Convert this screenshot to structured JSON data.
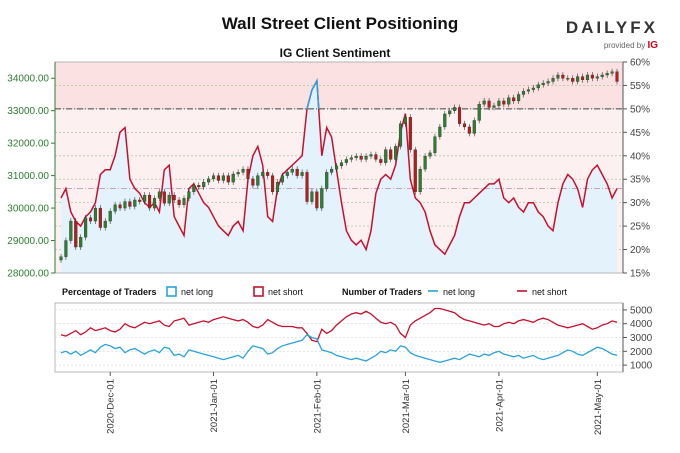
{
  "header": {
    "title": "Wall Street Client Positioning",
    "subtitle": "IG Client Sentiment",
    "brand_name": "DAILYFX",
    "brand_tag": "provided by",
    "brand_tag_logo": "IG"
  },
  "colors": {
    "price_up": "#2e7d32",
    "price_down": "#b71c1c",
    "net_long": "#29a3e0",
    "net_short": "#c8102e",
    "upper_fill": "#fbe1e1",
    "lower_fill": "#e3f1fc"
  },
  "chart_data": [
    {
      "type": "line",
      "title": "IG Client Sentiment",
      "left_axis": {
        "ticks": [
          "28000.00",
          "29000.00",
          "30000.00",
          "31000.00",
          "32000.00",
          "33000.00",
          "34000.00"
        ],
        "range": [
          28000,
          34500
        ]
      },
      "right_axis": {
        "ticks": [
          "15%",
          "20%",
          "25%",
          "30%",
          "35%",
          "40%",
          "45%",
          "50%",
          "55%",
          "60%"
        ],
        "range": [
          15,
          60
        ]
      },
      "x_labels": [
        "2020-Dec-01",
        "2021-Jan-01",
        "2021-Feb-01",
        "2021-Mar-01",
        "2021-Apr-01",
        "2021-May-01"
      ],
      "x_label_index": [
        10,
        31,
        52,
        70,
        89,
        109
      ],
      "n_points": 114,
      "reference_line_pct": 50,
      "price_close": [
        28500,
        29000,
        29600,
        28800,
        29100,
        29700,
        29600,
        30000,
        29400,
        29600,
        29900,
        30100,
        30000,
        30200,
        30050,
        30250,
        30200,
        30400,
        30000,
        30300,
        30500,
        30150,
        30400,
        30250,
        30100,
        30300,
        30500,
        30700,
        30650,
        30800,
        30900,
        31000,
        30850,
        31000,
        30800,
        31050,
        31100,
        31200,
        30900,
        30700,
        31000,
        31100,
        31000,
        30500,
        30800,
        31000,
        31100,
        31200,
        31000,
        31100,
        30200,
        30500,
        30000,
        30600,
        31100,
        31200,
        31300,
        31400,
        31500,
        31550,
        31600,
        31500,
        31600,
        31650,
        31500,
        31400,
        31800,
        31500,
        31900,
        32600,
        32800,
        31800,
        30500,
        31200,
        31600,
        31700,
        32200,
        32500,
        32900,
        33000,
        33100,
        32600,
        32500,
        32300,
        32700,
        33200,
        33300,
        33100,
        33150,
        33300,
        33200,
        33400,
        33300,
        33500,
        33600,
        33650,
        33700,
        33800,
        33850,
        33900,
        34000,
        34100,
        34000,
        34000,
        33900,
        34050,
        33950,
        34100,
        34000,
        34050,
        34100,
        34150,
        34200,
        33900
      ],
      "net_long_pct": [
        31,
        33,
        28,
        26,
        25,
        27,
        28,
        30,
        36,
        37,
        37,
        40,
        45,
        46,
        35,
        33,
        32,
        30,
        29,
        30,
        28,
        37,
        38,
        27,
        25,
        23,
        33,
        34,
        32,
        30,
        29,
        27,
        25,
        24,
        23,
        25,
        26,
        24,
        35,
        40,
        42,
        38,
        27,
        26,
        33,
        36,
        37,
        38,
        39,
        40,
        50,
        54,
        56,
        40,
        46,
        44,
        37,
        30,
        24,
        22,
        21,
        22,
        20,
        24,
        32,
        35,
        36,
        35,
        38,
        45,
        49,
        35,
        31,
        30,
        28,
        24,
        21,
        20,
        19,
        21,
        23,
        27,
        30,
        30,
        31,
        32,
        33,
        34,
        34,
        35,
        31,
        30,
        31,
        29,
        28,
        30,
        30,
        28,
        27,
        25,
        24,
        30,
        34,
        36,
        35,
        33,
        29,
        35,
        37,
        38,
        36,
        34,
        31,
        33
      ]
    },
    {
      "type": "line",
      "title": "Percentage of Traders",
      "legend": [
        {
          "name": "net long",
          "style": "box",
          "color": "#29a3e0"
        },
        {
          "name": "net short",
          "style": "box",
          "color": "#c8102e"
        },
        {
          "name": "Number of Traders",
          "style": "header"
        },
        {
          "name": "net long",
          "style": "line",
          "color": "#29a3e0"
        },
        {
          "name": "net short",
          "style": "line",
          "color": "#c8102e"
        }
      ],
      "right_axis": {
        "ticks": [
          "1000",
          "2000",
          "3000",
          "4000",
          "5000"
        ],
        "range": [
          500,
          5500
        ]
      },
      "net_long_count": [
        1900,
        2000,
        1800,
        2000,
        1700,
        1900,
        2100,
        1900,
        2300,
        2500,
        2400,
        2200,
        2300,
        1900,
        2100,
        2200,
        2000,
        1800,
        2000,
        2100,
        1900,
        2300,
        2200,
        1700,
        1800,
        1600,
        2100,
        2000,
        1900,
        1800,
        1700,
        1600,
        1500,
        1400,
        1500,
        1600,
        1700,
        1500,
        2000,
        2400,
        2300,
        2200,
        1800,
        1900,
        2200,
        2400,
        2500,
        2600,
        2700,
        2800,
        3200,
        3000,
        2900,
        2100,
        2000,
        1900,
        1700,
        1600,
        1500,
        1400,
        1500,
        1400,
        1300,
        1500,
        1700,
        2000,
        1900,
        2100,
        2000,
        2400,
        2300,
        1900,
        1700,
        1600,
        1500,
        1400,
        1300,
        1200,
        1300,
        1400,
        1500,
        1400,
        1600,
        1800,
        1700,
        1600,
        1800,
        1700,
        1900,
        2000,
        1800,
        1700,
        1600,
        1700,
        1500,
        1600,
        1700,
        1500,
        1400,
        1500,
        1600,
        1700,
        1900,
        2100,
        2000,
        1800,
        1700,
        1900,
        2100,
        2300,
        2200,
        2000,
        1800,
        1700
      ],
      "net_short_count": [
        3200,
        3100,
        3300,
        3500,
        3200,
        3400,
        3700,
        3500,
        3600,
        3700,
        3500,
        3400,
        3600,
        4000,
        3800,
        3700,
        3900,
        4100,
        4000,
        4100,
        4200,
        3900,
        3800,
        4200,
        4300,
        4400,
        3900,
        4000,
        4100,
        4200,
        4100,
        4300,
        4400,
        4500,
        4400,
        4300,
        4200,
        4300,
        4100,
        3800,
        3700,
        3900,
        4300,
        4100,
        3900,
        3800,
        3800,
        3800,
        3700,
        3700,
        3300,
        2800,
        2700,
        3600,
        3300,
        3500,
        3900,
        4200,
        4500,
        4700,
        4800,
        4700,
        4900,
        4700,
        4400,
        4100,
        4000,
        4100,
        3900,
        3300,
        3000,
        3900,
        4200,
        4400,
        4600,
        4800,
        5100,
        5100,
        5000,
        4900,
        4800,
        4500,
        4300,
        4200,
        4100,
        4000,
        3900,
        4000,
        3800,
        3800,
        4000,
        4100,
        4000,
        4200,
        4300,
        4200,
        4100,
        4300,
        4400,
        4300,
        4100,
        3900,
        3800,
        3700,
        3800,
        3900,
        4000,
        3800,
        3600,
        3700,
        3900,
        4000,
        4200,
        4100
      ]
    }
  ]
}
